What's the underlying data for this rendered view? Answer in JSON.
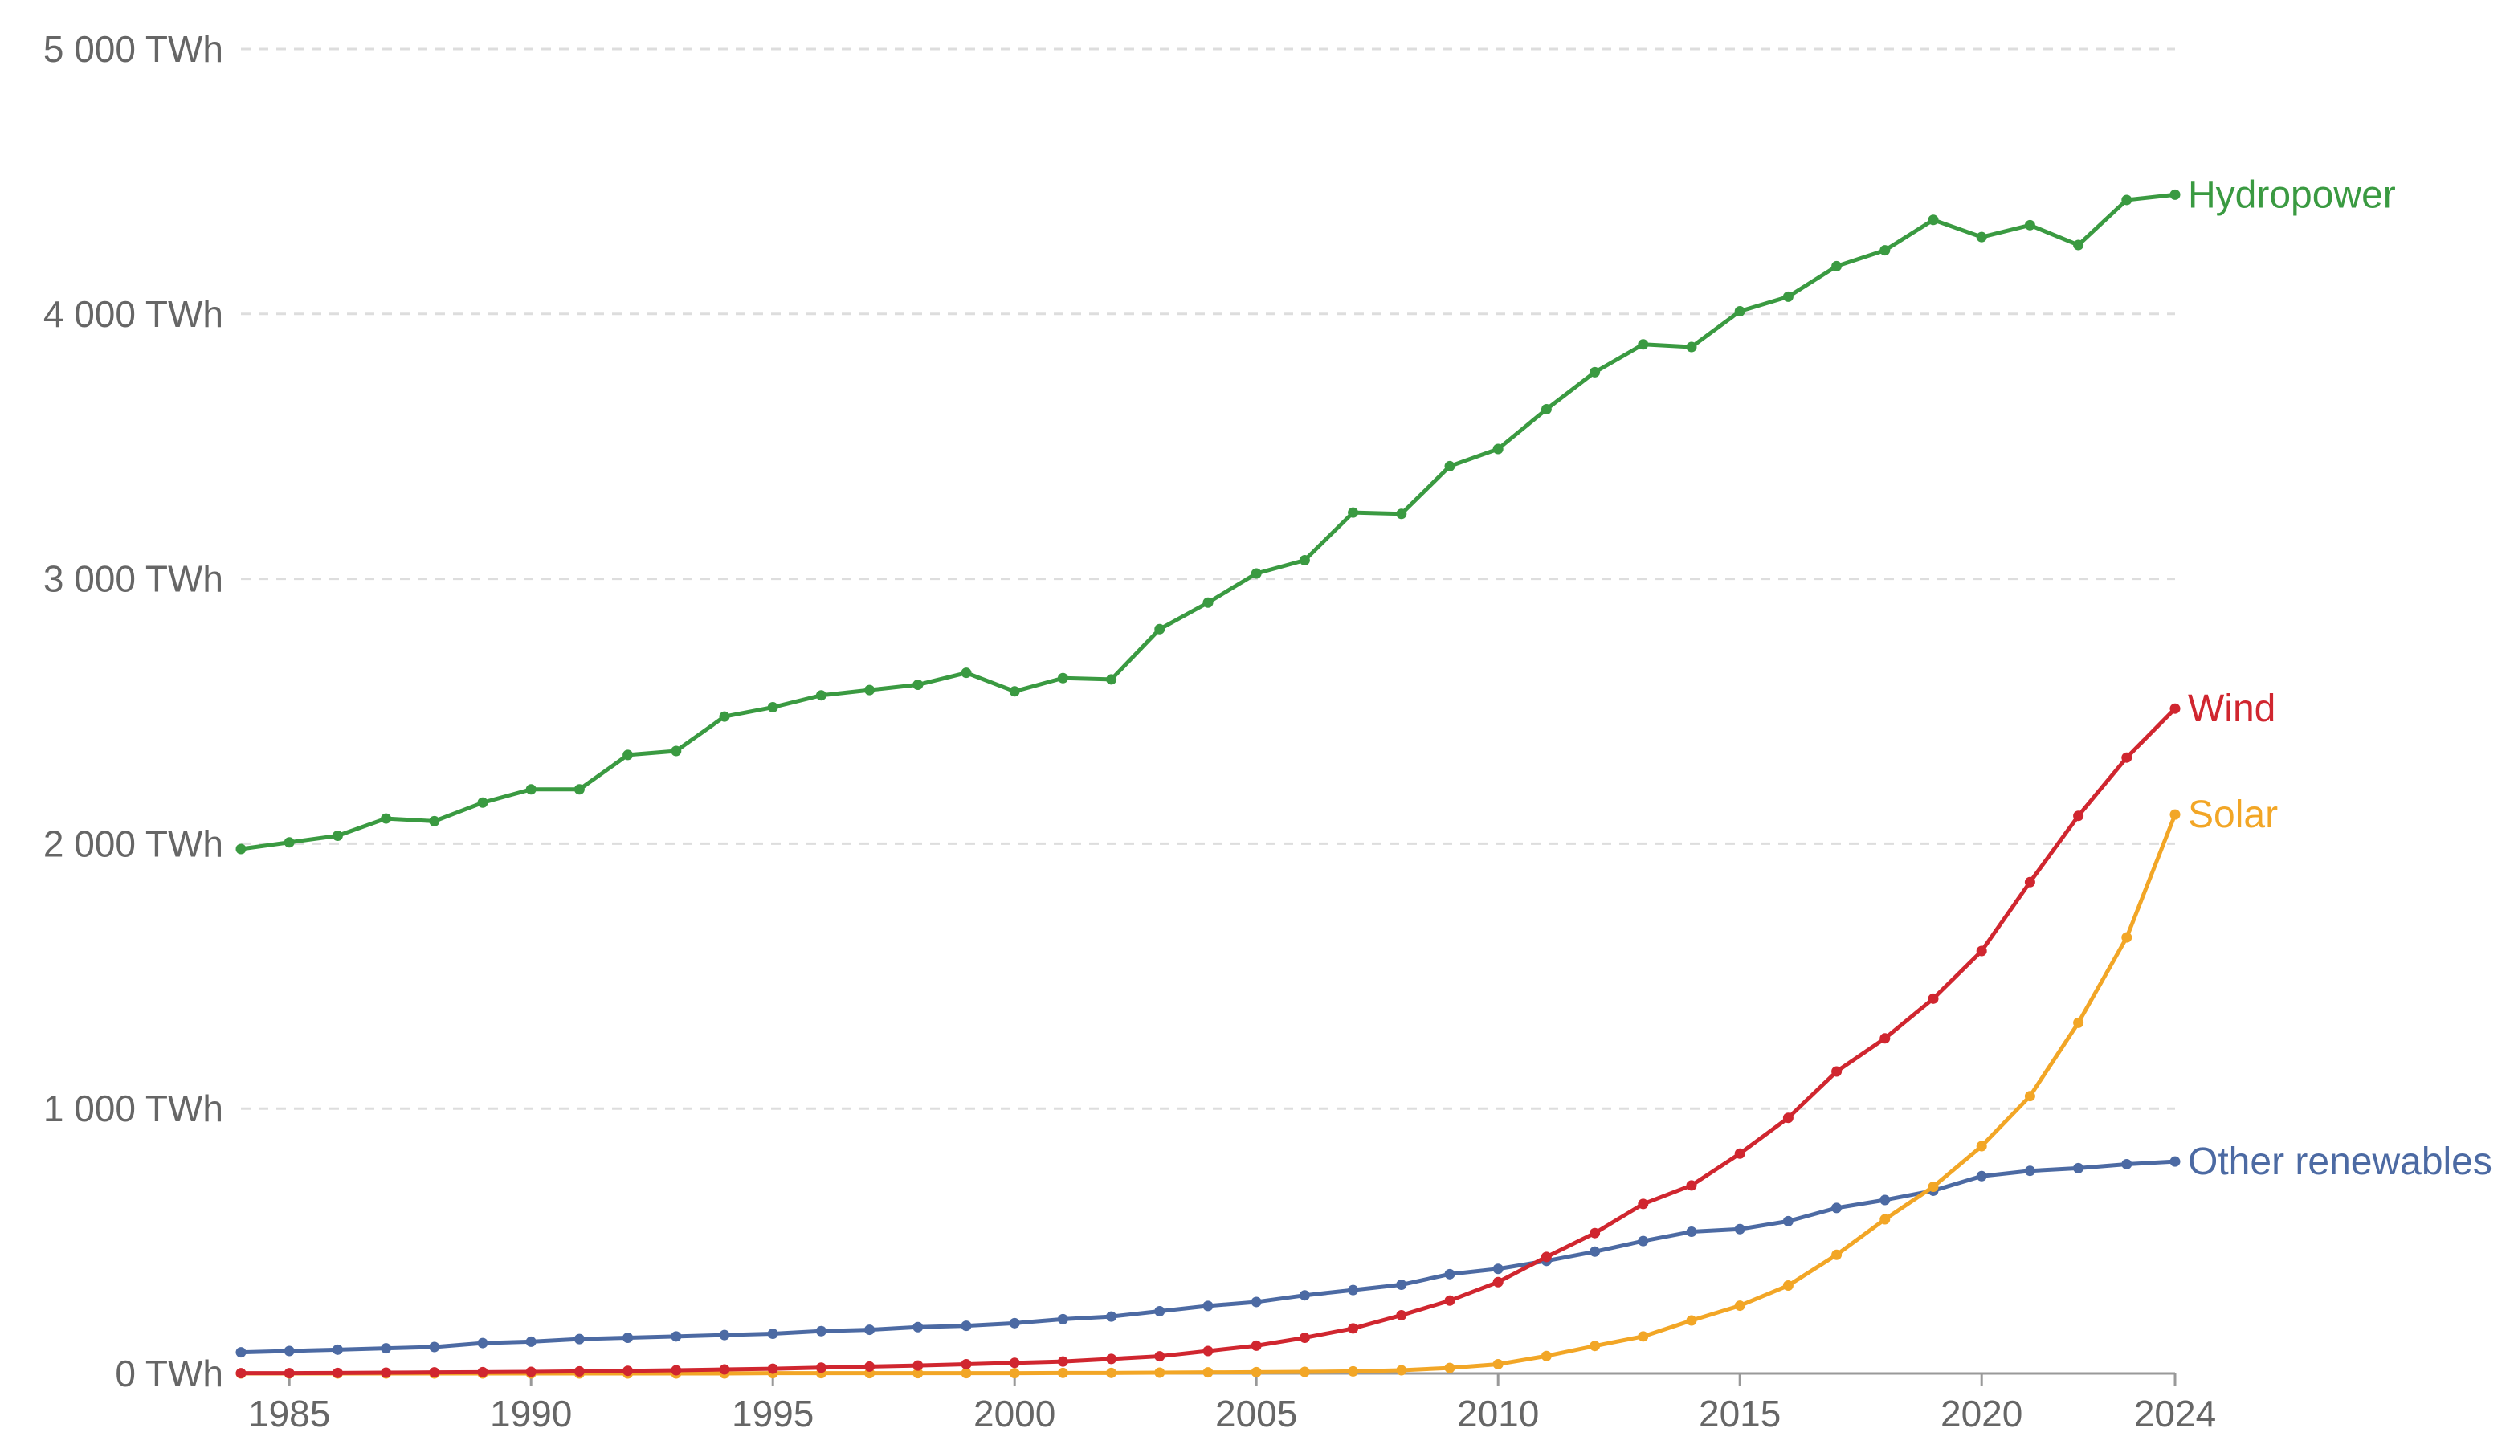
{
  "chart_data": {
    "type": "line",
    "title": "",
    "xlabel": "",
    "ylabel": "",
    "xlim": [
      1984,
      2024
    ],
    "ylim": [
      0,
      5000
    ],
    "grid": true,
    "legend": "inline-right",
    "y_ticks": [
      {
        "value": 0,
        "label": "0 TWh"
      },
      {
        "value": 1000,
        "label": "1 000 TWh"
      },
      {
        "value": 2000,
        "label": "2 000 TWh"
      },
      {
        "value": 3000,
        "label": "3 000 TWh"
      },
      {
        "value": 4000,
        "label": "4 000 TWh"
      },
      {
        "value": 5000,
        "label": "5 000 TWh"
      }
    ],
    "x_ticks": [
      {
        "value": 1985,
        "label": "1985"
      },
      {
        "value": 1990,
        "label": "1990"
      },
      {
        "value": 1995,
        "label": "1995"
      },
      {
        "value": 2000,
        "label": "2000"
      },
      {
        "value": 2005,
        "label": "2005"
      },
      {
        "value": 2010,
        "label": "2010"
      },
      {
        "value": 2015,
        "label": "2015"
      },
      {
        "value": 2020,
        "label": "2020"
      },
      {
        "value": 2024,
        "label": "2024"
      }
    ],
    "x": [
      1984,
      1985,
      1986,
      1987,
      1988,
      1989,
      1990,
      1991,
      1992,
      1993,
      1994,
      1995,
      1996,
      1997,
      1998,
      1999,
      2000,
      2001,
      2002,
      2003,
      2004,
      2005,
      2006,
      2007,
      2008,
      2009,
      2010,
      2011,
      2012,
      2013,
      2014,
      2015,
      2016,
      2017,
      2018,
      2019,
      2020,
      2021,
      2022,
      2023,
      2024
    ],
    "series": [
      {
        "name": "Hydropower",
        "color": "#3a9a41",
        "values": [
          1980,
          2005,
          2030,
          2095,
          2085,
          2155,
          2205,
          2205,
          2335,
          2350,
          2480,
          2515,
          2560,
          2580,
          2600,
          2645,
          2575,
          2625,
          2620,
          2810,
          2910,
          3020,
          3070,
          3250,
          3245,
          3425,
          3490,
          3640,
          3780,
          3885,
          3875,
          4010,
          4065,
          4180,
          4240,
          4355,
          4290,
          4335,
          4260,
          4430,
          4450
        ]
      },
      {
        "name": "Wind",
        "color": "#d0262f",
        "values": [
          1,
          1,
          2,
          3,
          4,
          5,
          6,
          8,
          10,
          12,
          15,
          18,
          22,
          26,
          30,
          35,
          40,
          45,
          55,
          65,
          85,
          105,
          135,
          170,
          220,
          275,
          345,
          440,
          530,
          640,
          710,
          830,
          965,
          1140,
          1265,
          1415,
          1595,
          1855,
          2105,
          2325,
          2510
        ]
      },
      {
        "name": "Solar",
        "color": "#f2a626",
        "values": [
          0,
          0,
          0,
          0,
          0,
          0,
          0,
          0,
          0,
          0,
          0,
          1,
          1,
          1,
          1,
          1,
          1,
          2,
          2,
          3,
          4,
          5,
          6,
          8,
          12,
          21,
          35,
          66,
          104,
          140,
          200,
          256,
          332,
          448,
          582,
          705,
          858,
          1047,
          1324,
          1646,
          2110
        ]
      },
      {
        "name": "Other renewables",
        "color": "#4c6aa3",
        "values": [
          80,
          85,
          90,
          95,
          100,
          115,
          120,
          130,
          135,
          140,
          145,
          150,
          160,
          165,
          175,
          180,
          190,
          205,
          215,
          235,
          255,
          270,
          295,
          315,
          335,
          375,
          395,
          425,
          460,
          500,
          535,
          545,
          575,
          625,
          655,
          690,
          745,
          765,
          775,
          790,
          800
        ]
      }
    ]
  }
}
